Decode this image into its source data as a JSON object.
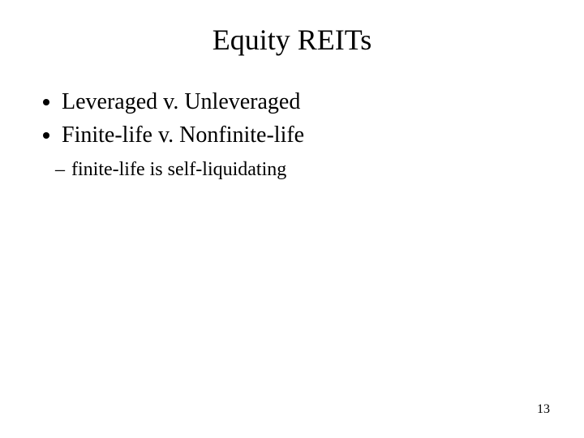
{
  "title": "Equity REITs",
  "title_fontsize": 36,
  "bullets": [
    {
      "text": "Leveraged v. Unleveraged"
    },
    {
      "text": "Finite-life v. Nonfinite-life"
    }
  ],
  "bullet_fontsize": 28,
  "sub_bullets": [
    {
      "text": "finite-life is self-liquidating"
    }
  ],
  "sub_fontsize": 24,
  "page_number": "13",
  "page_number_fontsize": 16,
  "colors": {
    "text": "#000000",
    "background": "#ffffff"
  }
}
